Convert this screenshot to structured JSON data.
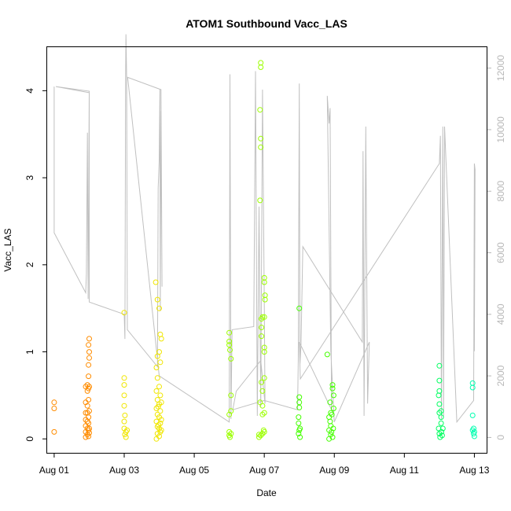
{
  "chart_data": {
    "type": "scatter",
    "title": "ATOM1 Southbound Vacc_LAS",
    "xlabel": "Date",
    "ylabel": "Vacc_LAS",
    "xlim": [
      -0.2,
      12.35
    ],
    "ylim": [
      -0.16,
      4.5
    ],
    "y2lim": [
      -500,
      12680
    ],
    "x_tick_labels": [
      {
        "x": 0,
        "label": "Aug 01"
      },
      {
        "x": 2,
        "label": "Aug 03"
      },
      {
        "x": 4,
        "label": "Aug 05"
      },
      {
        "x": 6,
        "label": "Aug 07"
      },
      {
        "x": 8,
        "label": "Aug 09"
      },
      {
        "x": 10,
        "label": "Aug 11"
      },
      {
        "x": 12,
        "label": "Aug 13"
      }
    ],
    "y_ticks": [
      0,
      1,
      2,
      3,
      4
    ],
    "y2_ticks": [
      0,
      2000,
      4000,
      6000,
      8000,
      10000,
      12000
    ],
    "series_colors": {
      "line": "#c0c0c0",
      "right_axis": "#b8b8b8",
      "day_colors": [
        "#ff8c00",
        "#f0e600",
        "#9cff00",
        "#44ff00",
        "#00ff60",
        "#00ffb0"
      ]
    },
    "secondary_line": [
      [
        0.0,
        11400
      ],
      [
        0.0,
        6650
      ],
      [
        0.9,
        4700
      ],
      [
        0.92,
        5300
      ],
      [
        0.95,
        9900
      ],
      [
        0.97,
        4500
      ],
      [
        1.0,
        11200
      ],
      [
        0.05,
        11400
      ],
      [
        1.0,
        11250
      ],
      [
        1.0,
        4400
      ],
      [
        2.0,
        4000
      ],
      [
        2.02,
        3200
      ],
      [
        2.04,
        11800
      ],
      [
        2.05,
        13100
      ],
      [
        2.07,
        11700
      ],
      [
        2.09,
        3500
      ],
      [
        2.95,
        2300
      ],
      [
        2.97,
        8100
      ],
      [
        3.0,
        9000
      ],
      [
        3.02,
        11300
      ],
      [
        3.03,
        4100
      ],
      [
        3.05,
        10600
      ],
      [
        3.08,
        4900
      ],
      [
        3.05,
        11300
      ],
      [
        2.1,
        11700
      ],
      [
        3.0,
        2000
      ],
      [
        5.0,
        500
      ],
      [
        5.02,
        11800
      ],
      [
        5.05,
        600
      ],
      [
        5.08,
        3500
      ],
      [
        5.7,
        3600
      ],
      [
        5.75,
        11900
      ],
      [
        5.8,
        700
      ],
      [
        5.85,
        7500
      ],
      [
        5.9,
        1000
      ],
      [
        5.95,
        11300
      ],
      [
        6.0,
        4300
      ],
      [
        6.02,
        1100
      ],
      [
        5.9,
        2500
      ],
      [
        5.2,
        1500
      ],
      [
        5.1,
        900
      ],
      [
        6.0,
        1200
      ],
      [
        6.95,
        900
      ],
      [
        6.97,
        2500
      ],
      [
        7.0,
        11500
      ],
      [
        7.02,
        2400
      ],
      [
        7.05,
        3000
      ],
      [
        7.1,
        6200
      ],
      [
        8.8,
        3100
      ],
      [
        8.82,
        9300
      ],
      [
        8.85,
        700
      ],
      [
        8.9,
        10100
      ],
      [
        8.95,
        1100
      ],
      [
        9.0,
        3100
      ],
      [
        8.0,
        500
      ],
      [
        7.9,
        2800
      ],
      [
        7.8,
        11100
      ],
      [
        7.85,
        10200
      ],
      [
        7.88,
        10700
      ],
      [
        7.92,
        900
      ],
      [
        7.0,
        3100
      ],
      [
        7.03,
        1900
      ],
      [
        11.0,
        8900
      ],
      [
        11.03,
        9800
      ],
      [
        11.06,
        600
      ],
      [
        11.1,
        10100
      ],
      [
        11.12,
        700
      ],
      [
        11.15,
        10100
      ],
      [
        11.5,
        500
      ],
      [
        11.98,
        1200
      ],
      [
        12.0,
        8900
      ],
      [
        12.02,
        8700
      ],
      [
        12.0,
        2800
      ]
    ],
    "scatter_points": [
      {
        "x": 0.0,
        "y": 0.42,
        "c": 0
      },
      {
        "x": 0.0,
        "y": 0.35,
        "c": 0
      },
      {
        "x": 0.0,
        "y": 0.08,
        "c": 0
      },
      {
        "x": 0.9,
        "y": 0.02,
        "c": 0
      },
      {
        "x": 0.9,
        "y": 0.08,
        "c": 0
      },
      {
        "x": 0.9,
        "y": 0.15,
        "c": 0
      },
      {
        "x": 0.9,
        "y": 0.22,
        "c": 0
      },
      {
        "x": 0.9,
        "y": 0.3,
        "c": 0
      },
      {
        "x": 0.9,
        "y": 0.42,
        "c": 0
      },
      {
        "x": 0.9,
        "y": 0.6,
        "c": 0
      },
      {
        "x": 0.95,
        "y": 0.05,
        "c": 0
      },
      {
        "x": 0.95,
        "y": 0.12,
        "c": 0
      },
      {
        "x": 0.95,
        "y": 0.2,
        "c": 0
      },
      {
        "x": 0.95,
        "y": 0.3,
        "c": 0
      },
      {
        "x": 0.95,
        "y": 0.38,
        "c": 0
      },
      {
        "x": 0.95,
        "y": 0.55,
        "c": 0
      },
      {
        "x": 0.95,
        "y": 0.62,
        "c": 0
      },
      {
        "x": 0.98,
        "y": 0.03,
        "c": 0
      },
      {
        "x": 0.98,
        "y": 0.1,
        "c": 0
      },
      {
        "x": 0.98,
        "y": 0.18,
        "c": 0
      },
      {
        "x": 0.98,
        "y": 0.25,
        "c": 0
      },
      {
        "x": 0.98,
        "y": 0.45,
        "c": 0
      },
      {
        "x": 0.98,
        "y": 0.58,
        "c": 0
      },
      {
        "x": 0.98,
        "y": 0.72,
        "c": 0
      },
      {
        "x": 0.98,
        "y": 0.85,
        "c": 0
      },
      {
        "x": 1.0,
        "y": 1.0,
        "c": 0
      },
      {
        "x": 0.98,
        "y": 1.08,
        "c": 0
      },
      {
        "x": 1.0,
        "y": 1.15,
        "c": 0
      },
      {
        "x": 1.0,
        "y": 0.32,
        "c": 0
      },
      {
        "x": 1.0,
        "y": 0.12,
        "c": 0
      },
      {
        "x": 1.0,
        "y": 0.93,
        "c": 0
      },
      {
        "x": 1.0,
        "y": 0.6,
        "c": 0
      },
      {
        "x": 1.0,
        "y": 0.07,
        "c": 0
      },
      {
        "x": 2.0,
        "y": 1.45,
        "c": 1
      },
      {
        "x": 2.0,
        "y": 0.7,
        "c": 1
      },
      {
        "x": 2.0,
        "y": 0.62,
        "c": 1
      },
      {
        "x": 2.0,
        "y": 0.5,
        "c": 1
      },
      {
        "x": 2.0,
        "y": 0.38,
        "c": 1
      },
      {
        "x": 2.0,
        "y": 0.2,
        "c": 1
      },
      {
        "x": 2.0,
        "y": 0.12,
        "c": 1
      },
      {
        "x": 2.02,
        "y": 0.05,
        "c": 1
      },
      {
        "x": 2.05,
        "y": 0.08,
        "c": 1
      },
      {
        "x": 2.05,
        "y": 0.02,
        "c": 1
      },
      {
        "x": 2.08,
        "y": 0.1,
        "c": 1
      },
      {
        "x": 2.02,
        "y": 0.27,
        "c": 1
      },
      {
        "x": 2.9,
        "y": 1.8,
        "c": 1
      },
      {
        "x": 2.95,
        "y": 1.6,
        "c": 1
      },
      {
        "x": 2.95,
        "y": 0.95,
        "c": 1
      },
      {
        "x": 2.92,
        "y": 0.82,
        "c": 1
      },
      {
        "x": 2.95,
        "y": 0.7,
        "c": 1
      },
      {
        "x": 2.92,
        "y": 0.55,
        "c": 1
      },
      {
        "x": 2.95,
        "y": 0.45,
        "c": 1
      },
      {
        "x": 2.92,
        "y": 0.35,
        "c": 1
      },
      {
        "x": 2.95,
        "y": 0.28,
        "c": 1
      },
      {
        "x": 2.92,
        "y": 0.2,
        "c": 1
      },
      {
        "x": 2.95,
        "y": 0.14,
        "c": 1
      },
      {
        "x": 2.95,
        "y": 0.06,
        "c": 1
      },
      {
        "x": 2.92,
        "y": 0.0,
        "c": 1
      },
      {
        "x": 3.0,
        "y": 1.5,
        "c": 1
      },
      {
        "x": 3.0,
        "y": 1.0,
        "c": 1
      },
      {
        "x": 3.0,
        "y": 0.6,
        "c": 1
      },
      {
        "x": 3.0,
        "y": 0.4,
        "c": 1
      },
      {
        "x": 3.0,
        "y": 0.25,
        "c": 1
      },
      {
        "x": 3.0,
        "y": 0.12,
        "c": 1
      },
      {
        "x": 3.0,
        "y": 0.03,
        "c": 1
      },
      {
        "x": 3.03,
        "y": 1.2,
        "c": 1
      },
      {
        "x": 3.03,
        "y": 0.88,
        "c": 1
      },
      {
        "x": 3.03,
        "y": 0.5,
        "c": 1
      },
      {
        "x": 3.03,
        "y": 0.32,
        "c": 1
      },
      {
        "x": 3.03,
        "y": 0.18,
        "c": 1
      },
      {
        "x": 3.03,
        "y": 0.08,
        "c": 1
      },
      {
        "x": 3.06,
        "y": 1.15,
        "c": 1
      },
      {
        "x": 3.06,
        "y": 0.42,
        "c": 1
      },
      {
        "x": 3.06,
        "y": 0.22,
        "c": 1
      },
      {
        "x": 3.06,
        "y": 0.1,
        "c": 1
      },
      {
        "x": 2.97,
        "y": 0.37,
        "c": 1
      },
      {
        "x": 2.98,
        "y": 0.16,
        "c": 1
      },
      {
        "x": 5.0,
        "y": 1.22,
        "c": 2
      },
      {
        "x": 5.0,
        "y": 1.12,
        "c": 2
      },
      {
        "x": 5.0,
        "y": 1.08,
        "c": 2
      },
      {
        "x": 5.02,
        "y": 1.02,
        "c": 2
      },
      {
        "x": 5.05,
        "y": 0.92,
        "c": 2
      },
      {
        "x": 5.05,
        "y": 0.5,
        "c": 2
      },
      {
        "x": 5.0,
        "y": 0.28,
        "c": 2
      },
      {
        "x": 5.05,
        "y": 0.32,
        "c": 2
      },
      {
        "x": 5.0,
        "y": 0.08,
        "c": 2
      },
      {
        "x": 5.0,
        "y": 0.04,
        "c": 2
      },
      {
        "x": 5.02,
        "y": 0.02,
        "c": 2
      },
      {
        "x": 5.05,
        "y": 0.06,
        "c": 2
      },
      {
        "x": 5.9,
        "y": 4.32,
        "c": 2
      },
      {
        "x": 5.9,
        "y": 4.27,
        "c": 2
      },
      {
        "x": 5.88,
        "y": 3.78,
        "c": 2
      },
      {
        "x": 5.9,
        "y": 3.45,
        "c": 2
      },
      {
        "x": 5.9,
        "y": 3.35,
        "c": 2
      },
      {
        "x": 5.88,
        "y": 2.74,
        "c": 2
      },
      {
        "x": 5.92,
        "y": 1.38,
        "c": 2
      },
      {
        "x": 5.92,
        "y": 1.28,
        "c": 2
      },
      {
        "x": 5.92,
        "y": 1.18,
        "c": 2
      },
      {
        "x": 5.95,
        "y": 1.4,
        "c": 2
      },
      {
        "x": 5.95,
        "y": 0.55,
        "c": 2
      },
      {
        "x": 5.88,
        "y": 0.42,
        "c": 2
      },
      {
        "x": 5.95,
        "y": 0.38,
        "c": 2
      },
      {
        "x": 5.95,
        "y": 0.28,
        "c": 2
      },
      {
        "x": 5.85,
        "y": 0.05,
        "c": 2
      },
      {
        "x": 5.85,
        "y": 0.02,
        "c": 2
      },
      {
        "x": 5.9,
        "y": 0.04,
        "c": 2
      },
      {
        "x": 5.95,
        "y": 0.06,
        "c": 2
      },
      {
        "x": 5.98,
        "y": 0.1,
        "c": 2
      },
      {
        "x": 6.0,
        "y": 1.85,
        "c": 2
      },
      {
        "x": 6.0,
        "y": 1.8,
        "c": 2
      },
      {
        "x": 6.02,
        "y": 1.65,
        "c": 2
      },
      {
        "x": 6.02,
        "y": 1.6,
        "c": 2
      },
      {
        "x": 6.0,
        "y": 1.4,
        "c": 2
      },
      {
        "x": 6.0,
        "y": 1.05,
        "c": 2
      },
      {
        "x": 6.0,
        "y": 1.0,
        "c": 2
      },
      {
        "x": 6.0,
        "y": 0.7,
        "c": 2
      },
      {
        "x": 6.0,
        "y": 0.3,
        "c": 2
      },
      {
        "x": 6.0,
        "y": 0.08,
        "c": 2
      },
      {
        "x": 5.92,
        "y": 0.65,
        "c": 2
      },
      {
        "x": 7.0,
        "y": 1.5,
        "c": 3
      },
      {
        "x": 7.0,
        "y": 0.48,
        "c": 3
      },
      {
        "x": 7.0,
        "y": 0.42,
        "c": 3
      },
      {
        "x": 7.0,
        "y": 0.36,
        "c": 3
      },
      {
        "x": 6.98,
        "y": 0.25,
        "c": 3
      },
      {
        "x": 6.98,
        "y": 0.18,
        "c": 3
      },
      {
        "x": 7.02,
        "y": 0.12,
        "c": 3
      },
      {
        "x": 6.98,
        "y": 0.06,
        "c": 3
      },
      {
        "x": 7.02,
        "y": 0.02,
        "c": 3
      },
      {
        "x": 7.0,
        "y": 0.1,
        "c": 3
      },
      {
        "x": 7.8,
        "y": 0.97,
        "c": 3
      },
      {
        "x": 7.95,
        "y": 0.62,
        "c": 3
      },
      {
        "x": 7.95,
        "y": 0.58,
        "c": 3
      },
      {
        "x": 7.98,
        "y": 0.5,
        "c": 3
      },
      {
        "x": 7.98,
        "y": 0.35,
        "c": 3
      },
      {
        "x": 7.88,
        "y": 0.42,
        "c": 3
      },
      {
        "x": 7.9,
        "y": 0.3,
        "c": 3
      },
      {
        "x": 7.85,
        "y": 0.25,
        "c": 3
      },
      {
        "x": 7.88,
        "y": 0.2,
        "c": 3
      },
      {
        "x": 7.9,
        "y": 0.15,
        "c": 3
      },
      {
        "x": 7.85,
        "y": 0.1,
        "c": 3
      },
      {
        "x": 7.9,
        "y": 0.05,
        "c": 3
      },
      {
        "x": 7.95,
        "y": 0.02,
        "c": 3
      },
      {
        "x": 7.85,
        "y": 0.0,
        "c": 3
      },
      {
        "x": 7.92,
        "y": 0.08,
        "c": 3
      },
      {
        "x": 7.97,
        "y": 0.12,
        "c": 3
      },
      {
        "x": 7.93,
        "y": 0.28,
        "c": 3
      },
      {
        "x": 11.0,
        "y": 0.84,
        "c": 4
      },
      {
        "x": 11.0,
        "y": 0.67,
        "c": 4
      },
      {
        "x": 11.0,
        "y": 0.55,
        "c": 4
      },
      {
        "x": 10.98,
        "y": 0.5,
        "c": 4
      },
      {
        "x": 11.0,
        "y": 0.4,
        "c": 4
      },
      {
        "x": 11.0,
        "y": 0.3,
        "c": 4
      },
      {
        "x": 11.05,
        "y": 0.32,
        "c": 4
      },
      {
        "x": 11.05,
        "y": 0.25,
        "c": 4
      },
      {
        "x": 11.05,
        "y": 0.18,
        "c": 4
      },
      {
        "x": 10.98,
        "y": 0.12,
        "c": 4
      },
      {
        "x": 11.0,
        "y": 0.06,
        "c": 4
      },
      {
        "x": 11.02,
        "y": 0.02,
        "c": 4
      },
      {
        "x": 11.06,
        "y": 0.08,
        "c": 4
      },
      {
        "x": 11.1,
        "y": 0.12,
        "c": 4
      },
      {
        "x": 11.08,
        "y": 0.04,
        "c": 4
      },
      {
        "x": 11.95,
        "y": 0.64,
        "c": 5
      },
      {
        "x": 11.95,
        "y": 0.59,
        "c": 5
      },
      {
        "x": 11.95,
        "y": 0.27,
        "c": 5
      },
      {
        "x": 11.95,
        "y": 0.1,
        "c": 5
      },
      {
        "x": 11.98,
        "y": 0.06,
        "c": 5
      },
      {
        "x": 12.0,
        "y": 0.03,
        "c": 5
      },
      {
        "x": 11.98,
        "y": 0.12,
        "c": 5
      },
      {
        "x": 12.0,
        "y": 0.08,
        "c": 5
      }
    ]
  }
}
